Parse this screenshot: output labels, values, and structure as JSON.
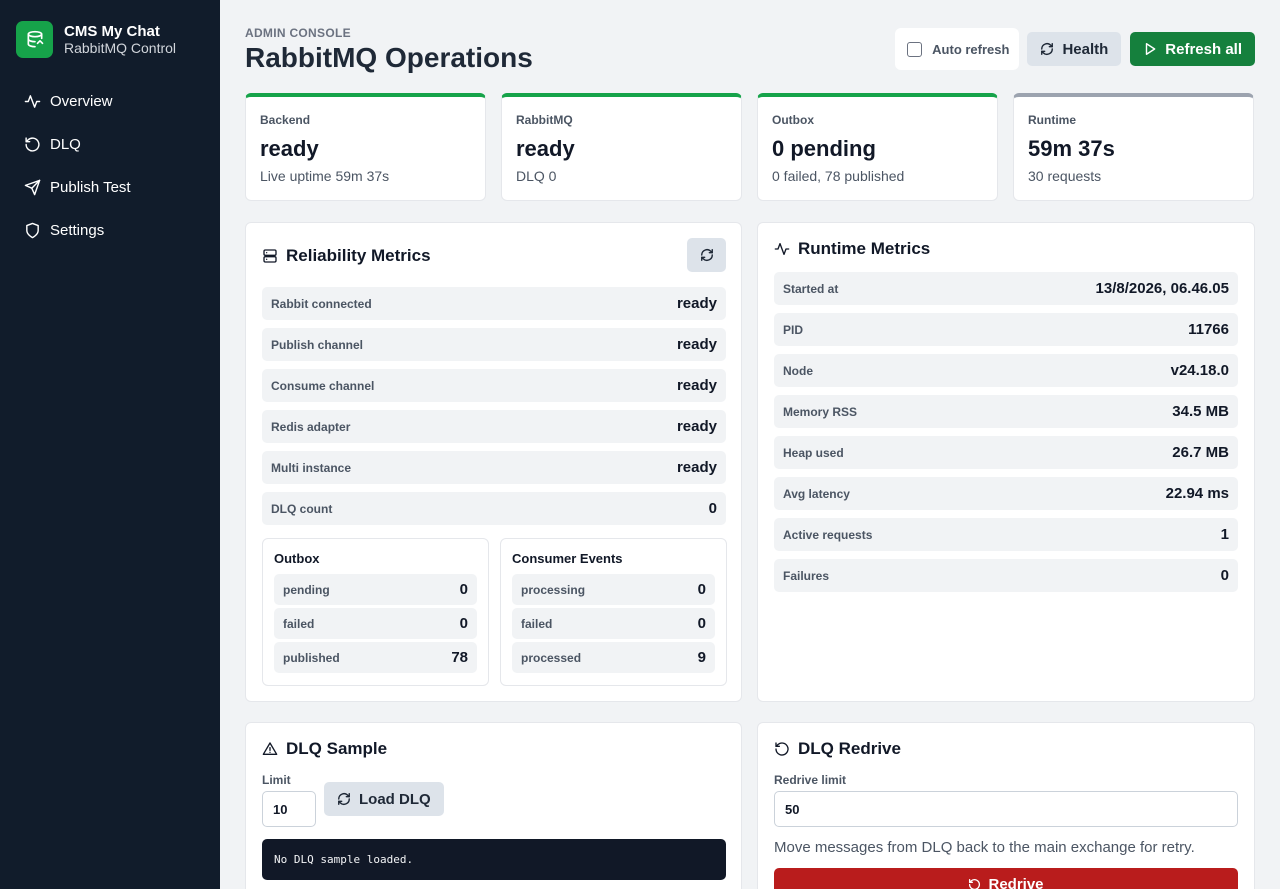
{
  "brand": {
    "title": "CMS My Chat",
    "subtitle": "RabbitMQ Control"
  },
  "sidebar": {
    "items": [
      {
        "label": "Overview",
        "icon": "activity-icon"
      },
      {
        "label": "DLQ",
        "icon": "rotate-icon"
      },
      {
        "label": "Publish Test",
        "icon": "send-icon"
      },
      {
        "label": "Settings",
        "icon": "shield-icon"
      }
    ]
  },
  "header": {
    "kicker": "ADMIN CONSOLE",
    "title": "RabbitMQ Operations",
    "auto_refresh_label": "Auto refresh",
    "auto_refresh_checked": false,
    "health_label": "Health",
    "refresh_all_label": "Refresh all"
  },
  "stats": [
    {
      "label": "Backend",
      "value": "ready",
      "sub": "Live uptime 59m 37s",
      "accent": "#16a34a"
    },
    {
      "label": "RabbitMQ",
      "value": "ready",
      "sub": "DLQ 0",
      "accent": "#16a34a"
    },
    {
      "label": "Outbox",
      "value": "0 pending",
      "sub": "0 failed, 78 published",
      "accent": "#16a34a"
    },
    {
      "label": "Runtime",
      "value": "59m 37s",
      "sub": "30 requests",
      "accent": "#9ca3af"
    }
  ],
  "reliability": {
    "title": "Reliability Metrics",
    "rows": [
      {
        "k": "Rabbit connected",
        "v": "ready"
      },
      {
        "k": "Publish channel",
        "v": "ready"
      },
      {
        "k": "Consume channel",
        "v": "ready"
      },
      {
        "k": "Redis adapter",
        "v": "ready"
      },
      {
        "k": "Multi instance",
        "v": "ready"
      },
      {
        "k": "DLQ count",
        "v": "0"
      }
    ],
    "outbox": {
      "title": "Outbox",
      "rows": [
        {
          "k": "pending",
          "v": "0"
        },
        {
          "k": "failed",
          "v": "0"
        },
        {
          "k": "published",
          "v": "78"
        }
      ]
    },
    "consumer": {
      "title": "Consumer Events",
      "rows": [
        {
          "k": "processing",
          "v": "0"
        },
        {
          "k": "failed",
          "v": "0"
        },
        {
          "k": "processed",
          "v": "9"
        }
      ]
    }
  },
  "runtime": {
    "title": "Runtime Metrics",
    "rows": [
      {
        "k": "Started at",
        "v": "13/8/2026, 06.46.05"
      },
      {
        "k": "PID",
        "v": "11766"
      },
      {
        "k": "Node",
        "v": "v24.18.0"
      },
      {
        "k": "Memory RSS",
        "v": "34.5 MB"
      },
      {
        "k": "Heap used",
        "v": "26.7 MB"
      },
      {
        "k": "Avg latency",
        "v": "22.94 ms"
      },
      {
        "k": "Active requests",
        "v": "1"
      },
      {
        "k": "Failures",
        "v": "0"
      }
    ]
  },
  "dlq_sample": {
    "title": "DLQ Sample",
    "limit_label": "Limit",
    "limit_value": "10",
    "load_label": "Load DLQ",
    "output": "No DLQ sample loaded."
  },
  "dlq_redrive": {
    "title": "DLQ Redrive",
    "limit_label": "Redrive limit",
    "limit_value": "50",
    "note": "Move messages from DLQ back to the main exchange for retry.",
    "button_label": "Redrive"
  },
  "colors": {
    "sidebar": "#111c2b",
    "brand_green": "#16a34a",
    "primary_button": "#15803d",
    "danger": "#b91c1c"
  }
}
